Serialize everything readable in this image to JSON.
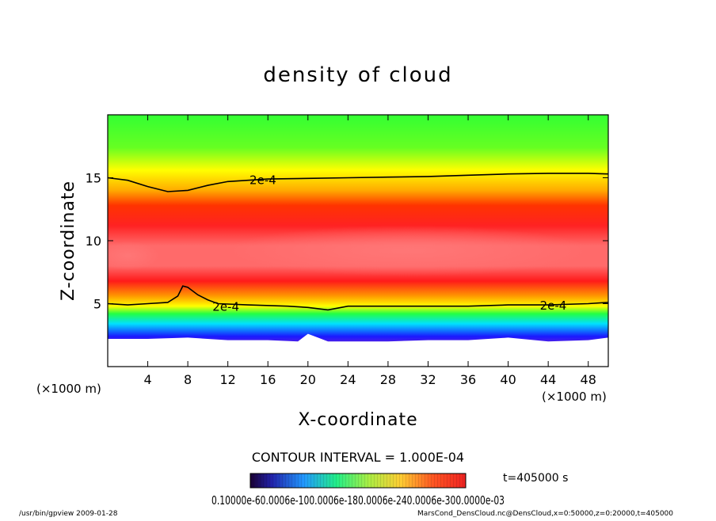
{
  "chart_data": {
    "type": "heatmap",
    "title": "density of cloud",
    "xlabel": "X-coordinate",
    "ylabel": "Z-coordinate",
    "x_unit_left": "(×1000 m)",
    "x_unit_right": "(×1000 m)",
    "xlim": [
      0,
      50
    ],
    "ylim": [
      0,
      20
    ],
    "xticks": [
      4,
      8,
      12,
      16,
      20,
      24,
      28,
      32,
      36,
      40,
      44,
      48
    ],
    "yticks": [
      5,
      10,
      15
    ],
    "contour_interval_text": "CONTOUR INTERVAL = 1.000E-04",
    "contour_label": "2e-4",
    "time_label": "t=405000 s",
    "colorbar_labels": "0.10000e-60.0006e-100.0006e-180.0006e-240.0006e-300.0000e-03",
    "colors": {
      "green": "#33ff33",
      "yellow": "#ffff00",
      "orange": "#ff9900",
      "red": "#ff1a1a",
      "pink": "#ff7070",
      "cyan": "#00e0ff",
      "blue": "#1a1aff",
      "purple": "#8822cc"
    },
    "contour_2e4_upper": {
      "x": [
        0,
        2,
        4,
        6,
        8,
        10,
        12,
        14,
        16,
        20,
        24,
        28,
        32,
        36,
        40,
        44,
        48,
        50
      ],
      "z": [
        15.0,
        14.8,
        14.3,
        13.9,
        14.0,
        14.4,
        14.7,
        14.8,
        14.9,
        14.95,
        15.0,
        15.05,
        15.1,
        15.2,
        15.3,
        15.35,
        15.35,
        15.3
      ]
    },
    "contour_2e4_lower": {
      "x": [
        0,
        2,
        4,
        6,
        7,
        7.5,
        8,
        9,
        10,
        11,
        14,
        18,
        20,
        22,
        24,
        28,
        32,
        36,
        40,
        44,
        48,
        50
      ],
      "z": [
        5.0,
        4.9,
        5.0,
        5.1,
        5.6,
        6.4,
        6.3,
        5.7,
        5.3,
        5.0,
        4.9,
        4.8,
        4.7,
        4.5,
        4.8,
        4.8,
        4.8,
        4.8,
        4.9,
        4.9,
        5.0,
        5.1
      ]
    },
    "cloud_base": {
      "x": [
        0,
        4,
        8,
        12,
        16,
        19,
        20,
        21,
        22,
        24,
        28,
        32,
        36,
        40,
        44,
        48,
        50
      ],
      "z": [
        2.2,
        2.2,
        2.3,
        2.1,
        2.1,
        2.0,
        2.6,
        2.3,
        2.0,
        2.0,
        2.0,
        2.1,
        2.1,
        2.3,
        2.0,
        2.1,
        2.3
      ]
    }
  },
  "footer": {
    "left": "/usr/bin/gpview   2009-01-28",
    "right": "MarsCond_DensCloud.nc@DensCloud,x=0:50000,z=0:20000,t=405000"
  }
}
